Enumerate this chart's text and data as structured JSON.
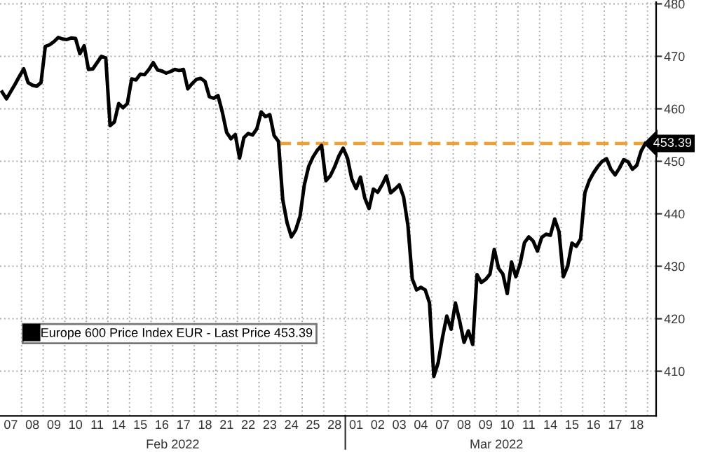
{
  "chart_data": {
    "type": "line",
    "categories": [
      null,
      null,
      "07",
      null,
      null,
      null,
      null,
      "08",
      null,
      null,
      null,
      null,
      "09",
      null,
      null,
      null,
      null,
      "10",
      null,
      null,
      null,
      null,
      "11",
      null,
      null,
      null,
      null,
      "14",
      null,
      null,
      null,
      null,
      "15",
      null,
      null,
      null,
      null,
      "16",
      null,
      null,
      null,
      null,
      "17",
      null,
      null,
      null,
      null,
      "18",
      null,
      null,
      null,
      null,
      "21",
      null,
      null,
      null,
      null,
      "22",
      null,
      null,
      null,
      null,
      "23",
      null,
      null,
      null,
      null,
      "24",
      null,
      null,
      null,
      null,
      "25",
      null,
      null,
      null,
      null,
      "28",
      null,
      null,
      null,
      null,
      "01",
      null,
      null,
      null,
      null,
      "02",
      null,
      null,
      null,
      null,
      "03",
      null,
      null,
      null,
      null,
      "04",
      null,
      null,
      null,
      null,
      "07",
      null,
      null,
      null,
      null,
      "08",
      null,
      null,
      null,
      null,
      "09",
      null,
      null,
      null,
      null,
      "10",
      null,
      null,
      null,
      null,
      "11",
      null,
      null,
      null,
      null,
      "14",
      null,
      null,
      null,
      null,
      "15",
      null,
      null,
      null,
      null,
      "16",
      null,
      null,
      null,
      null,
      "17",
      null,
      null,
      null,
      null,
      "18",
      null,
      null
    ],
    "series": [
      {
        "name": "Europe 600 Price Index EUR - Last Price 453.39",
        "color": "#000000",
        "values": [
          463.2,
          461.9,
          463.3,
          464.7,
          466.2,
          467.6,
          465.0,
          464.5,
          464.3,
          465.0,
          471.9,
          472.2,
          472.8,
          473.6,
          473.3,
          473.2,
          473.5,
          473.4,
          470.5,
          472.0,
          467.5,
          467.6,
          468.8,
          470.0,
          469.7,
          456.8,
          457.5,
          461.0,
          460.2,
          461.0,
          465.7,
          465.5,
          466.6,
          466.5,
          467.5,
          468.8,
          467.4,
          467.2,
          466.8,
          467.1,
          467.5,
          467.3,
          467.5,
          463.8,
          464.8,
          465.6,
          465.8,
          465.2,
          462.3,
          462.0,
          462.5,
          459.4,
          455.5,
          454.3,
          455.1,
          450.6,
          454.5,
          455.3,
          455.0,
          456.2,
          459.4,
          458.5,
          458.9,
          454.9,
          453.8,
          442.7,
          438.3,
          435.6,
          436.9,
          439.5,
          445.5,
          449.0,
          450.8,
          452.1,
          453.0,
          446.3,
          447.2,
          448.9,
          451.0,
          452.5,
          450.6,
          446.6,
          444.8,
          447.0,
          443.0,
          441.0,
          444.7,
          444.1,
          445.5,
          447.2,
          444.0,
          444.7,
          445.5,
          443.2,
          437.8,
          427.6,
          425.5,
          426.0,
          425.5,
          423.0,
          409.0,
          411.6,
          416.4,
          420.5,
          418.0,
          423.0,
          419.5,
          415.5,
          417.7,
          415.1,
          428.4,
          426.9,
          427.5,
          428.5,
          433.2,
          429.6,
          428.5,
          424.8,
          430.8,
          428.0,
          430.5,
          434.5,
          435.6,
          434.8,
          432.9,
          435.5,
          436.1,
          435.9,
          439.0,
          436.6,
          428.0,
          430.0,
          434.4,
          433.8,
          435.2,
          444.0,
          446.3,
          447.8,
          449.0,
          450.0,
          450.5,
          448.5,
          447.4,
          448.7,
          450.3,
          449.9,
          448.5,
          449.2,
          451.9,
          453.39
        ]
      },
      {
        "color": "#f0a030",
        "line_style": "dashed",
        "values": [
          null,
          null,
          null,
          null,
          null,
          null,
          null,
          null,
          null,
          null,
          null,
          null,
          null,
          null,
          null,
          null,
          null,
          null,
          null,
          null,
          null,
          null,
          null,
          null,
          null,
          null,
          null,
          null,
          null,
          null,
          null,
          null,
          null,
          null,
          null,
          null,
          null,
          null,
          null,
          null,
          null,
          null,
          null,
          null,
          null,
          null,
          null,
          null,
          null,
          null,
          null,
          null,
          null,
          null,
          null,
          null,
          null,
          null,
          null,
          null,
          null,
          null,
          null,
          null,
          453.39,
          453.39,
          453.39,
          453.39,
          453.39,
          453.39,
          453.39,
          453.39,
          453.39,
          453.39,
          453.39,
          453.39,
          453.39,
          453.39,
          453.39,
          453.39,
          453.39,
          453.39,
          453.39,
          453.39,
          453.39,
          453.39,
          453.39,
          453.39,
          453.39,
          453.39,
          453.39,
          453.39,
          453.39,
          453.39,
          453.39,
          453.39,
          453.39,
          453.39,
          453.39,
          453.39,
          453.39,
          453.39,
          453.39,
          453.39,
          453.39,
          453.39,
          453.39,
          453.39,
          453.39,
          453.39,
          453.39,
          453.39,
          453.39,
          453.39,
          453.39,
          453.39,
          453.39,
          453.39,
          453.39,
          453.39,
          453.39,
          453.39,
          453.39,
          453.39,
          453.39,
          453.39,
          453.39,
          453.39,
          453.39,
          453.39,
          453.39,
          453.39,
          453.39,
          453.39,
          453.39,
          453.39,
          453.39,
          453.39,
          453.39,
          453.39,
          453.39,
          453.39,
          453.39,
          453.39,
          453.39,
          453.39,
          453.39,
          453.39,
          453.39,
          453.39
        ],
        "value_labels": [
          null,
          null,
          null,
          null,
          null,
          null,
          null,
          null,
          null,
          null,
          null,
          null,
          null,
          null,
          null,
          null,
          null,
          null,
          null,
          null,
          null,
          null,
          null,
          null,
          null,
          null,
          null,
          null,
          null,
          null,
          null,
          null,
          null,
          null,
          null,
          null,
          null,
          null,
          null,
          null,
          null,
          null,
          null,
          null,
          null,
          null,
          null,
          null,
          null,
          null,
          null,
          null,
          null,
          null,
          null,
          null,
          null,
          null,
          null,
          null,
          null,
          null,
          null,
          null,
          null,
          null,
          null,
          null,
          null,
          null,
          null,
          null,
          null,
          null,
          null,
          null,
          null,
          null,
          null,
          null,
          null,
          null,
          null,
          null,
          null,
          null,
          null,
          null,
          null,
          null,
          null,
          null,
          null,
          null,
          null,
          null,
          null,
          null,
          null,
          null,
          null,
          null,
          null,
          null,
          null,
          null,
          null,
          null,
          null,
          null,
          null,
          null,
          null,
          null,
          null,
          null,
          null,
          null,
          null,
          null,
          null,
          null,
          null,
          null,
          null,
          null,
          null,
          null,
          null,
          null,
          null,
          null,
          null,
          null,
          null,
          null,
          null,
          null,
          null,
          null,
          null,
          null,
          null,
          null,
          null,
          null,
          null,
          null,
          null,
          "453.39"
        ]
      }
    ],
    "ylim": [
      401.5,
      480.3
    ],
    "yticks": [
      410,
      420,
      430,
      440,
      450,
      460,
      470,
      480
    ],
    "annotations": [
      "Feb 2022",
      "Mar 2022"
    ],
    "grid": true,
    "legend": "bottom left",
    "marker": "none",
    "line_style": "solid"
  }
}
